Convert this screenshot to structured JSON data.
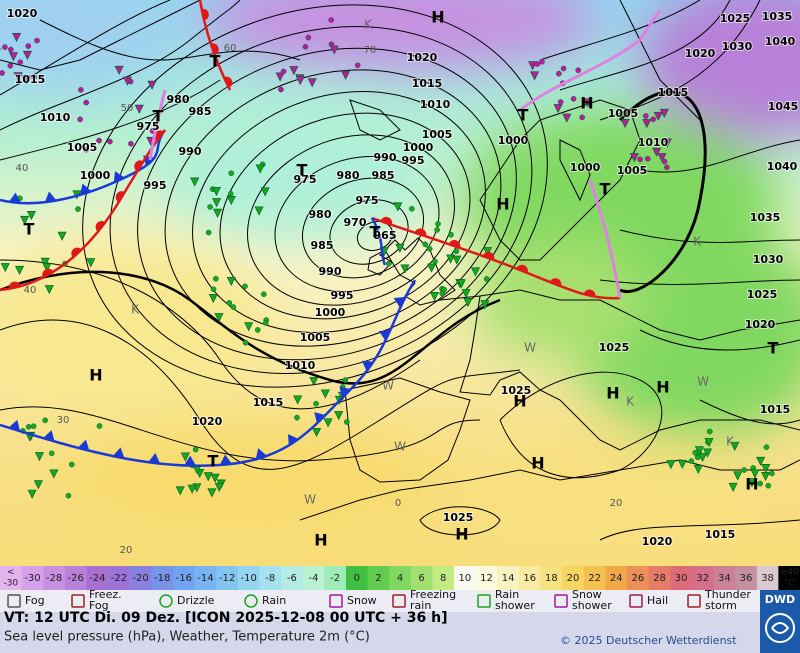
{
  "map": {
    "isobar_labels": [
      "1020",
      "1015",
      "1010",
      "1005",
      "1000",
      "995",
      "990",
      "985",
      "980",
      "975",
      "980",
      "985",
      "990",
      "995",
      "1000",
      "1005",
      "1010",
      "1015",
      "1020",
      "975",
      "980",
      "985",
      "990",
      "995",
      "1000",
      "1005",
      "1010",
      "1015",
      "1020",
      "975",
      "970",
      "965",
      "1000",
      "1000",
      "1005",
      "1005",
      "1010",
      "1015",
      "1020",
      "1025",
      "1030",
      "1035",
      "1040",
      "1045",
      "1040",
      "1035",
      "1030",
      "1025",
      "1020",
      "1015",
      "1025",
      "1025",
      "1025",
      "1020",
      "1015"
    ],
    "pressure_systems": [
      "H",
      "H",
      "H",
      "H",
      "H",
      "H",
      "H",
      "H",
      "H",
      "H",
      "H",
      "T",
      "T",
      "T",
      "T",
      "T",
      "T",
      "T",
      "T",
      "T"
    ],
    "isotherm_labels": [
      "40",
      "40",
      "30",
      "20",
      "0",
      "20",
      "60",
      "70",
      "50"
    ],
    "air_mass_labels": [
      "K",
      "K",
      "K",
      "K",
      "W",
      "W",
      "W",
      "W",
      "W",
      "K"
    ]
  },
  "temperature_scale": {
    "below": [
      "<",
      "-30"
    ],
    "values": [
      -30,
      -28,
      -26,
      -24,
      -22,
      -20,
      -18,
      -16,
      -14,
      -12,
      -10,
      -8,
      -6,
      -4,
      -2,
      0,
      2,
      4,
      6,
      8,
      10,
      12,
      14,
      16,
      18,
      20,
      22,
      24,
      26,
      28,
      30,
      32,
      34,
      36,
      38
    ],
    "above": [
      "≥40",
      "°C"
    ],
    "colors": [
      "#e4b4f0",
      "#d8a0e8",
      "#c890e0",
      "#b880d8",
      "#a870d0",
      "#9c74d8",
      "#8880e0",
      "#7894e8",
      "#70a4f0",
      "#78b4f0",
      "#84c4f0",
      "#94d4f0",
      "#a4e2ee",
      "#b4ece4",
      "#b8f2d0",
      "#a0ecb8",
      "#40c040",
      "#60cc50",
      "#80d860",
      "#a0e070",
      "#c4ea84",
      "#fafaf0",
      "#fafadc",
      "#f8f2c0",
      "#f8eaa0",
      "#f8e280",
      "#f8d460",
      "#f4c050",
      "#f0a848",
      "#ec9058",
      "#e47c68",
      "#dc6c78",
      "#d47088",
      "#cc8098",
      "#c490a0",
      "#d8c8d0"
    ]
  },
  "weather_legend": [
    [
      "Fog"
    ],
    [
      "Freez.",
      "Fog"
    ],
    [
      "Drizzle"
    ],
    [
      "Rain"
    ],
    [
      "Snow"
    ],
    [
      "Freezing",
      "rain"
    ],
    [
      "Rain",
      "shower"
    ],
    [
      "Snow",
      "shower"
    ],
    [
      "Hail"
    ],
    [
      "Thunder",
      "storm"
    ]
  ],
  "footer": {
    "valid_time": "VT: 12 UTC Di.  09 Dez. [ICON 2025-12-08  00 UTC + 36 h]",
    "description": "Sea level pressure (hPa), Weather, Temperature 2m (°C)",
    "copyright": "© 2025 Deutscher Wetterdienst",
    "logo": "DWD"
  }
}
